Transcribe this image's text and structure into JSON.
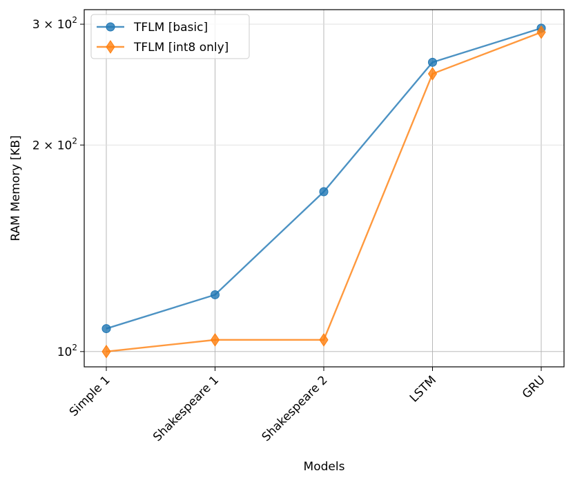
{
  "chart_data": {
    "type": "line",
    "xlabel": "Models",
    "ylabel": "RAM Memory [KB]",
    "yscale": "log",
    "ylim": [
      95,
      315
    ],
    "categories": [
      "Simple 1",
      "Shakespeare 1",
      "Shakespeare 2",
      "LSTM",
      "GRU"
    ],
    "yticks": [
      {
        "value": 100,
        "base": "10",
        "exp": "2",
        "mult": ""
      },
      {
        "value": 200,
        "base": "10",
        "exp": "2",
        "mult": "2 × "
      },
      {
        "value": 300,
        "base": "10",
        "exp": "2",
        "mult": "3 × "
      }
    ],
    "grid": true,
    "legend_position": "top-left",
    "series": [
      {
        "name": "TFLM [basic]",
        "marker": "circle",
        "color": "#1f77b4",
        "values": [
          108,
          121,
          171,
          264,
          296
        ]
      },
      {
        "name": "TFLM [int8 only]",
        "marker": "diamond",
        "color": "#ff7f0e",
        "values": [
          100,
          104,
          104,
          254,
          292
        ]
      }
    ]
  }
}
